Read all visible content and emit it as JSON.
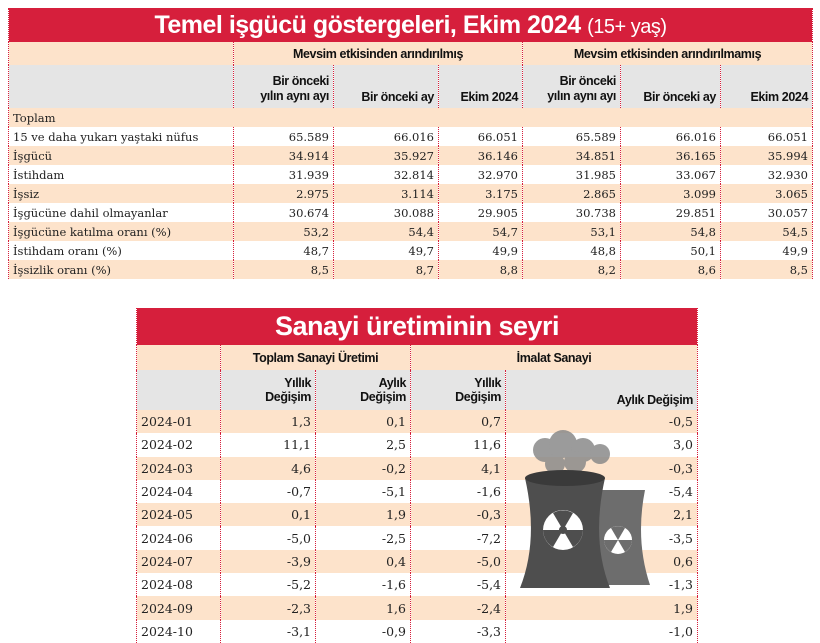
{
  "labor": {
    "title": "Temel işgücü göstergeleri, Ekim 2024",
    "subtitle": "(15+ yaş)",
    "group1": "Mevsim etkisinden arındırılmış",
    "group2": "Mevsim etkisinden arındırılmamış",
    "col_a1": "Bir önceki",
    "col_a2": "yılın aynı ayı",
    "col_b": "Bir önceki ay",
    "col_c": "Ekim 2024",
    "section": "Toplam",
    "rows": [
      {
        "label": "15 ve daha yukarı yaştaki nüfus",
        "v": [
          "65.589",
          "66.016",
          "66.051",
          "65.589",
          "66.016",
          "66.051"
        ]
      },
      {
        "label": "İşgücü",
        "v": [
          "34.914",
          "35.927",
          "36.146",
          "34.851",
          "36.165",
          "35.994"
        ]
      },
      {
        "label": "İstihdam",
        "v": [
          "31.939",
          "32.814",
          "32.970",
          "31.985",
          "33.067",
          "32.930"
        ]
      },
      {
        "label": "İşsiz",
        "v": [
          "2.975",
          "3.114",
          "3.175",
          "2.865",
          "3.099",
          "3.065"
        ]
      },
      {
        "label": "İşgücüne dahil olmayanlar",
        "v": [
          "30.674",
          "30.088",
          "29.905",
          "30.738",
          "29.851",
          "30.057"
        ]
      },
      {
        "label": "İşgücüne katılma oranı (%)",
        "v": [
          "53,2",
          "54,4",
          "54,7",
          "53,1",
          "54,8",
          "54,5"
        ]
      },
      {
        "label": "İstihdam oranı (%)",
        "v": [
          "48,7",
          "49,7",
          "49,9",
          "48,8",
          "50,1",
          "49,9"
        ]
      },
      {
        "label": "İşsizlik oranı (%)",
        "v": [
          "8,5",
          "8,7",
          "8,8",
          "8,2",
          "8,6",
          "8,5"
        ]
      }
    ]
  },
  "industry": {
    "title": "Sanayi üretiminin seyri",
    "group1": "Toplam Sanayi Üretimi",
    "group2": "İmalat Sanayi",
    "yearly1": "Yıllık",
    "yearly2": "Değişim",
    "monthly1": "Aylık",
    "monthly2": "Değişim",
    "monthly_full": "Aylık Değişim",
    "rows": [
      {
        "month": "2024-01",
        "v": [
          "1,3",
          "0,1",
          "0,7",
          "-0,5"
        ]
      },
      {
        "month": "2024-02",
        "v": [
          "11,1",
          "2,5",
          "11,6",
          "3,0"
        ]
      },
      {
        "month": "2024-03",
        "v": [
          "4,6",
          "-0,2",
          "4,1",
          "-0,3"
        ]
      },
      {
        "month": "2024-04",
        "v": [
          "-0,7",
          "-5,1",
          "-1,6",
          "-5,4"
        ]
      },
      {
        "month": "2024-05",
        "v": [
          "0,1",
          "1,9",
          "-0,3",
          "2,1"
        ]
      },
      {
        "month": "2024-06",
        "v": [
          "-5,0",
          "-2,5",
          "-7,2",
          "-3,5"
        ]
      },
      {
        "month": "2024-07",
        "v": [
          "-3,9",
          "0,4",
          "-5,0",
          "0,6"
        ]
      },
      {
        "month": "2024-08",
        "v": [
          "-5,2",
          "-1,6",
          "-5,4",
          "-1,3"
        ]
      },
      {
        "month": "2024-09",
        "v": [
          "-2,3",
          "1,6",
          "-2,4",
          "1,9"
        ]
      },
      {
        "month": "2024-10",
        "v": [
          "-3,1",
          "-0,9",
          "-3,3",
          "-1,0"
        ]
      }
    ]
  },
  "colors": {
    "red": "#d61f3c",
    "peach": "#fde3cb",
    "grey": "#e5e5e5"
  }
}
